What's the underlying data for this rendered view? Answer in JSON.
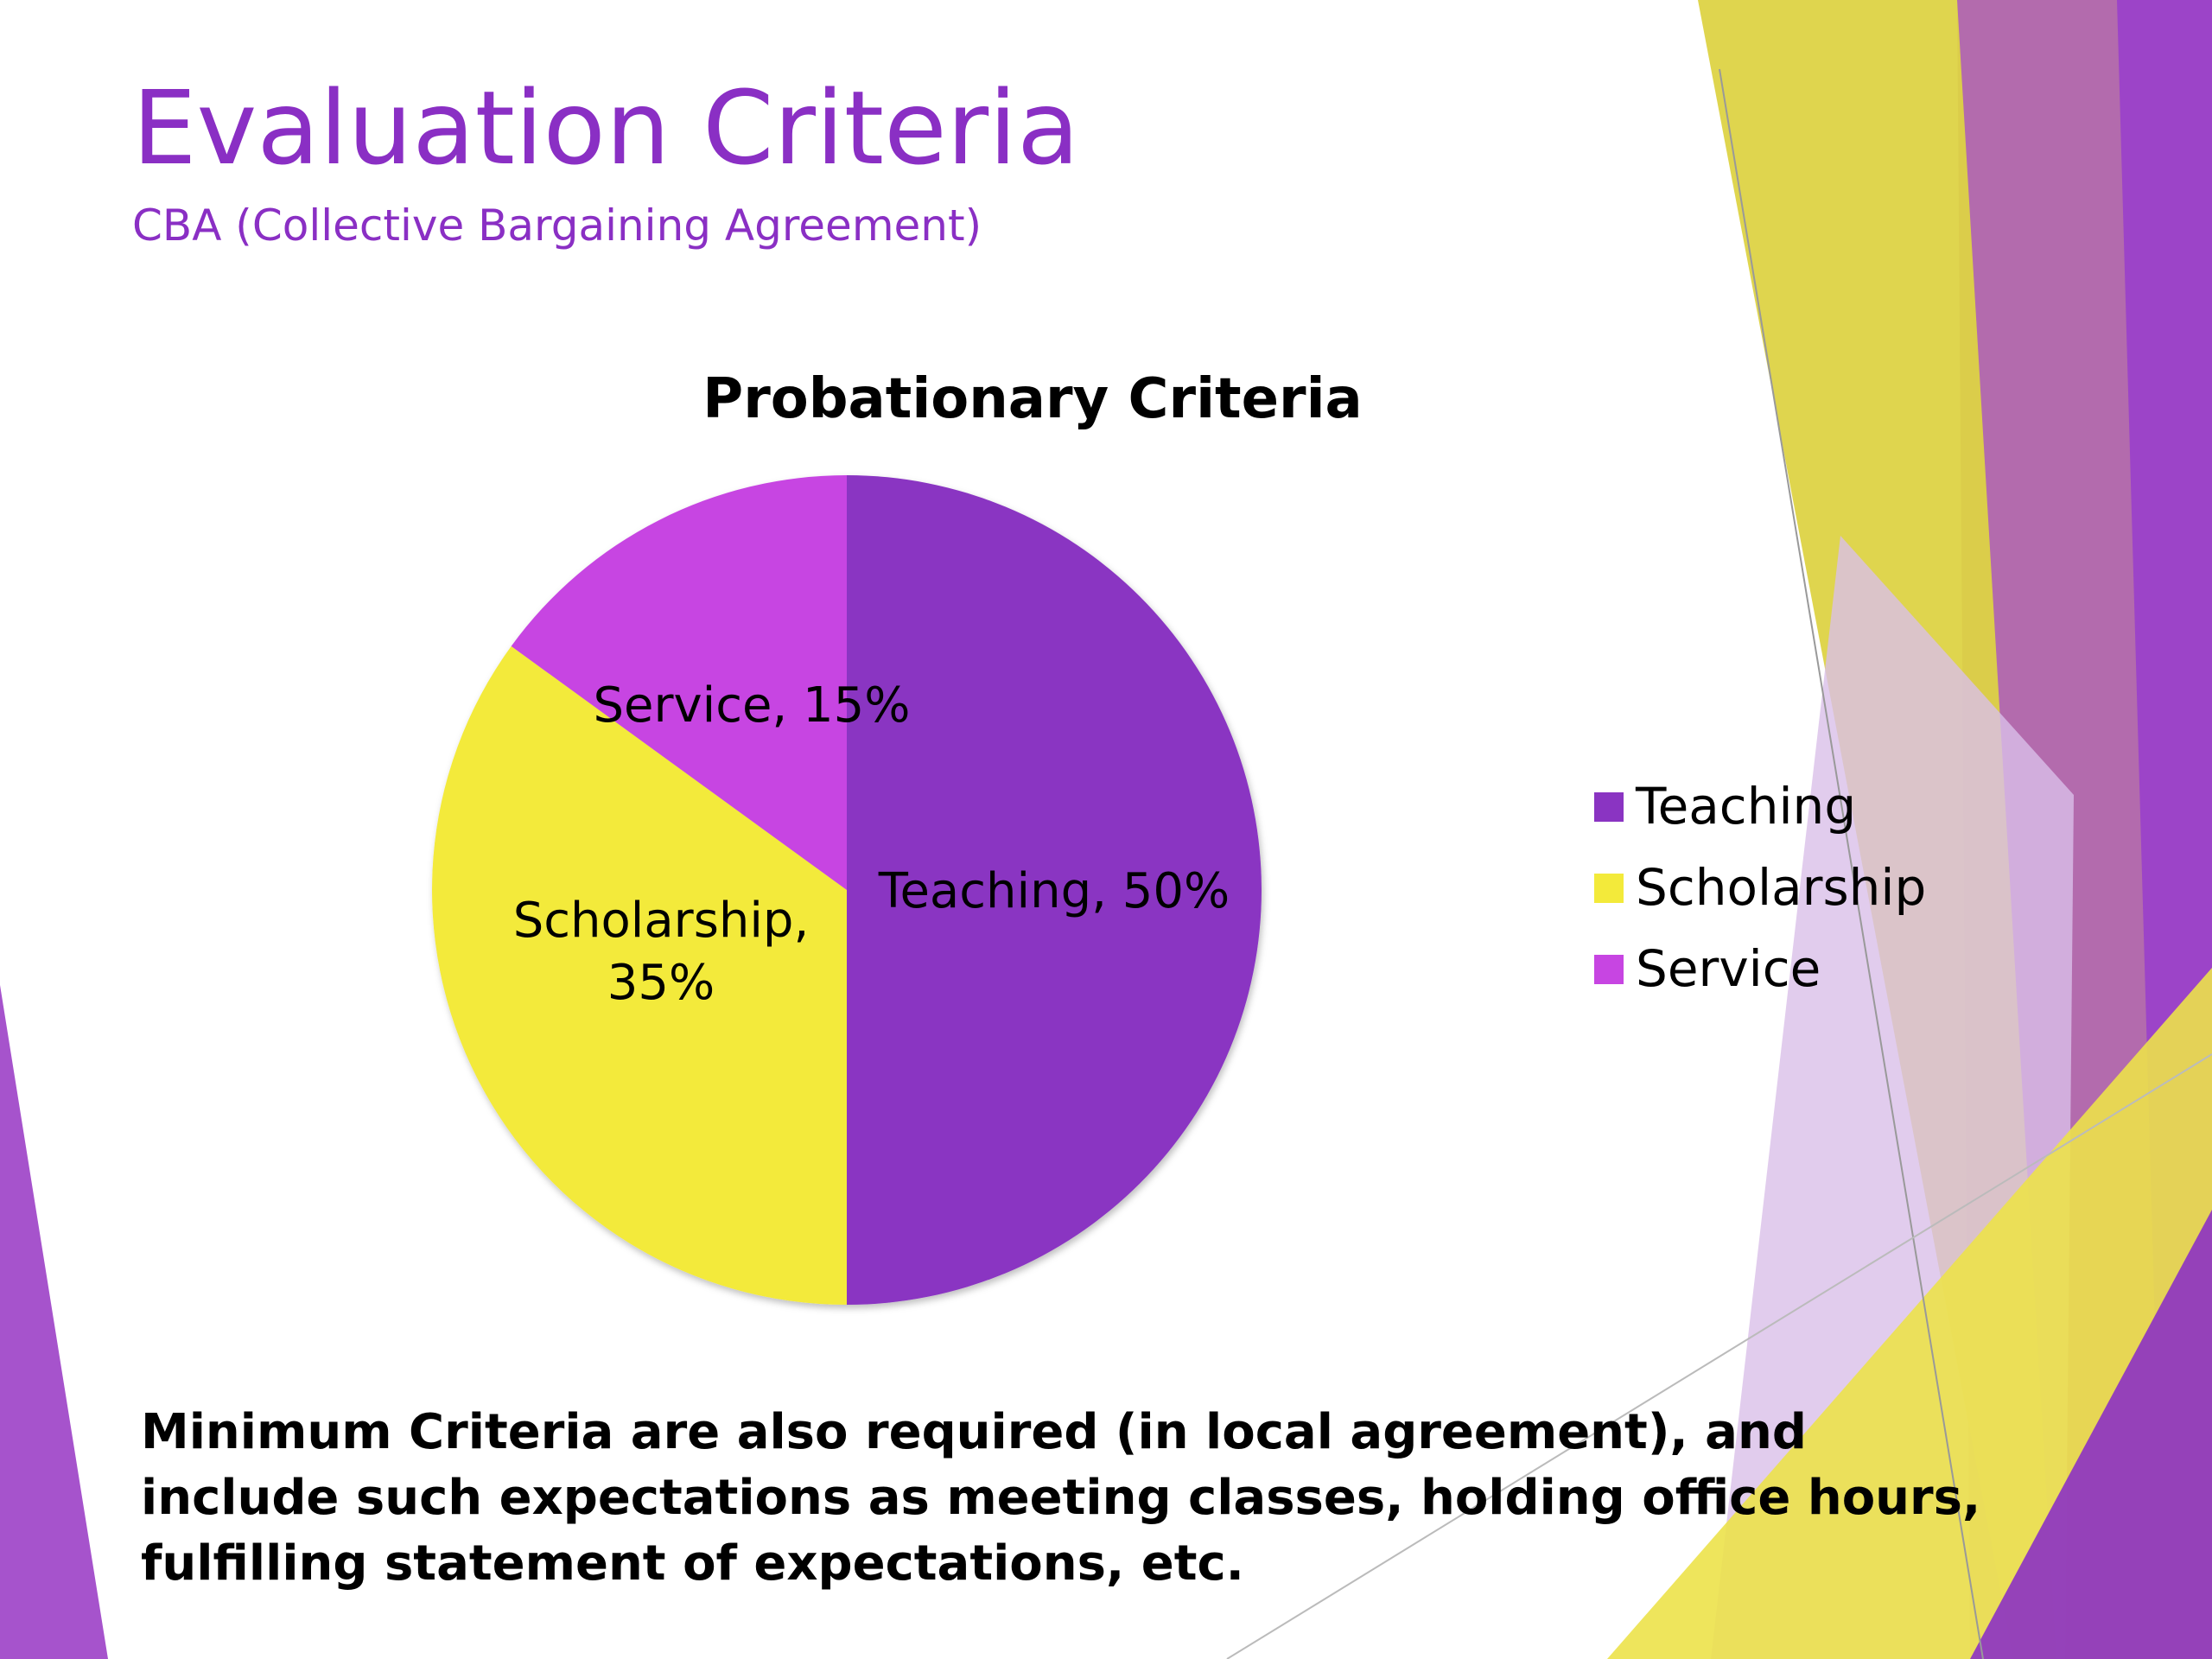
{
  "slide": {
    "title": "Evaluation Criteria",
    "subtitle": "CBA (Collective Bargaining Agreement)",
    "note": "Minimum Criteria are also required (in local agreement), and include such expectations as meeting classes, holding office hours, fulfilling statement of expectations, etc."
  },
  "colors": {
    "title": "#8a2fc4",
    "teaching": "#8a34c2",
    "scholarship": "#f3ea3a",
    "service": "#c745e2",
    "accent_yellow": "#e4dc42",
    "accent_purple": "#9b42c9"
  },
  "chart_data": {
    "type": "pie",
    "title": "Probationary Criteria",
    "categories": [
      "Teaching",
      "Scholarship",
      "Service"
    ],
    "values": [
      50,
      35,
      15
    ],
    "data_labels": [
      [
        "Teaching, 50%"
      ],
      [
        "Scholarship,",
        "35%"
      ],
      [
        "Service, 15%"
      ]
    ],
    "legend": {
      "position": "right",
      "entries": [
        "Teaching",
        "Scholarship",
        "Service"
      ]
    }
  }
}
